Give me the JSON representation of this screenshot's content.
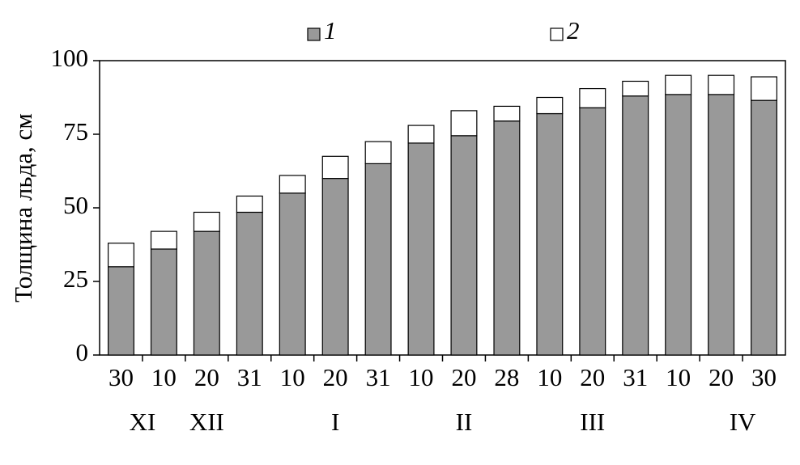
{
  "chart_data": {
    "type": "stacked-bar",
    "ylabel": "Толщина льда, см",
    "categories": [
      "30",
      "10",
      "20",
      "31",
      "10",
      "20",
      "31",
      "10",
      "20",
      "28",
      "10",
      "20",
      "31",
      "10",
      "20",
      "30"
    ],
    "month_labels": [
      "XI",
      null,
      "XII",
      null,
      null,
      "I",
      null,
      null,
      "II",
      null,
      null,
      "III",
      null,
      null,
      "IV",
      null
    ],
    "series": [
      {
        "name": "1",
        "color": "#999999",
        "values": [
          30,
          36,
          42,
          48.5,
          55,
          60,
          65,
          72,
          74.5,
          79.5,
          82,
          84,
          88,
          88.5,
          88.5,
          86.5
        ]
      },
      {
        "name": "2",
        "color": "#ffffff",
        "values": [
          8,
          6,
          6.5,
          5.5,
          6,
          7.5,
          7.5,
          6,
          8.5,
          5,
          5.5,
          6.5,
          5,
          6.5,
          6.5,
          8
        ]
      }
    ],
    "ylim": [
      0,
      100
    ],
    "yticks": [
      0,
      25,
      50,
      75,
      100
    ],
    "grid": false
  }
}
